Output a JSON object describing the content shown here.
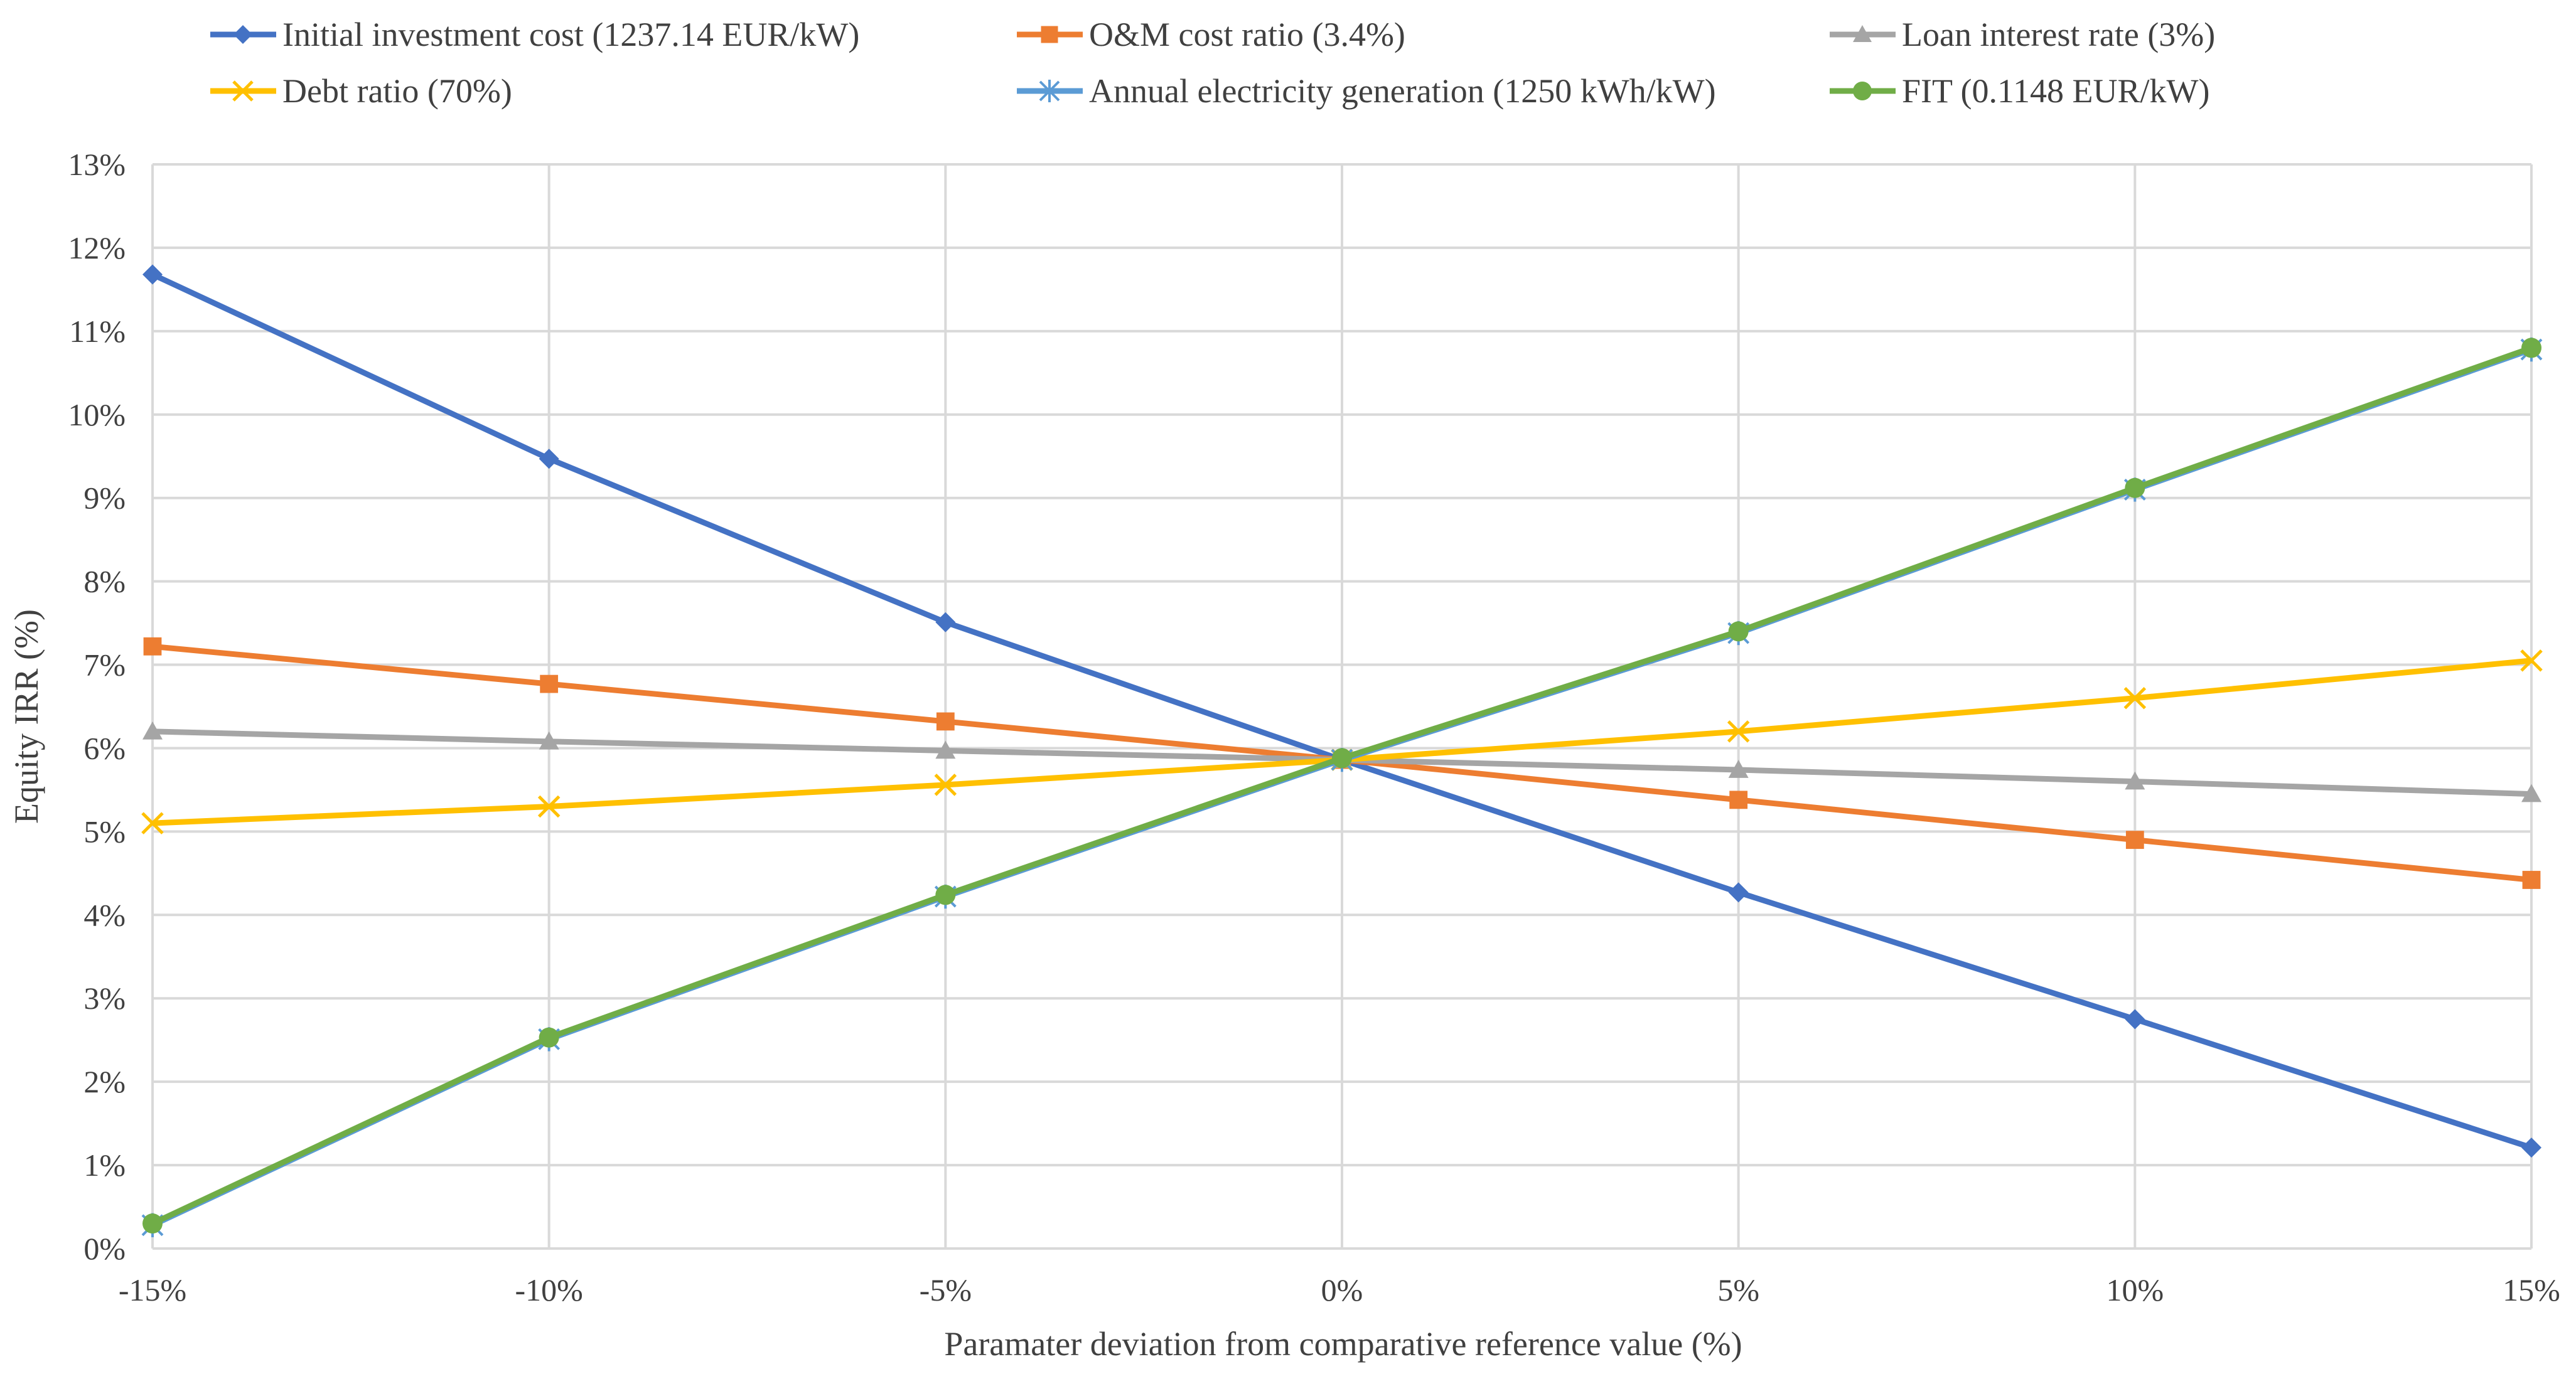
{
  "chart_data": {
    "type": "line",
    "title": "",
    "xlabel": "Paramater deviation from comparative reference value (%)",
    "ylabel": "Equity IRR (%)",
    "x": [
      -15,
      -10,
      -5,
      0,
      5,
      10,
      15
    ],
    "x_tick_labels": [
      "-15%",
      "-10%",
      "-5%",
      "0%",
      "5%",
      "10%",
      "15%"
    ],
    "y_tick_labels": [
      "0%",
      "1%",
      "2%",
      "3%",
      "4%",
      "5%",
      "6%",
      "7%",
      "8%",
      "9%",
      "10%",
      "11%",
      "12%",
      "13%"
    ],
    "xlim": [
      -15,
      15
    ],
    "ylim": [
      0,
      13
    ],
    "grid": true,
    "legend_position": "top",
    "series": [
      {
        "name": "Initial investment cost (1237.14 EUR/kW)",
        "color": "#4472C4",
        "marker": "diamond",
        "values": [
          11.68,
          9.47,
          7.51,
          5.86,
          4.27,
          2.75,
          1.21
        ]
      },
      {
        "name": "O&M cost ratio (3.4%)",
        "color": "#ED7D31",
        "marker": "square",
        "values": [
          7.22,
          6.77,
          6.32,
          5.86,
          5.38,
          4.9,
          4.42
        ]
      },
      {
        "name": "Loan interest rate (3%)",
        "color": "#A5A5A5",
        "marker": "triangle",
        "values": [
          6.2,
          6.08,
          5.97,
          5.86,
          5.74,
          5.6,
          5.45
        ]
      },
      {
        "name": "Debt ratio (70%)",
        "color": "#FFC000",
        "marker": "x",
        "values": [
          5.1,
          5.3,
          5.56,
          5.86,
          6.2,
          6.6,
          7.05
        ]
      },
      {
        "name": "Annual electricity generation (1250 kWh/kW)",
        "color": "#5B9BD5",
        "marker": "asterisk",
        "values": [
          0.28,
          2.51,
          4.22,
          5.86,
          7.38,
          9.1,
          10.78
        ]
      },
      {
        "name": "FIT (0.1148 EUR/kW)",
        "color": "#70AD47",
        "marker": "circle",
        "values": [
          0.3,
          2.53,
          4.24,
          5.88,
          7.4,
          9.12,
          10.8
        ]
      }
    ]
  }
}
